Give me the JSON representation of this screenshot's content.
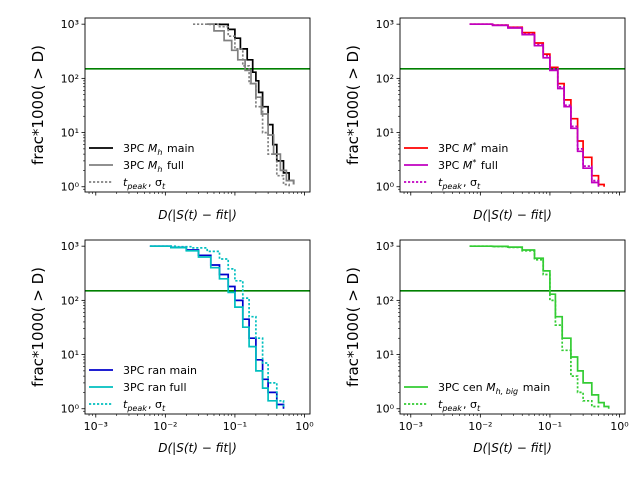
{
  "figure": {
    "title": "",
    "panel_count": 4
  },
  "chart_data": [
    {
      "type": "line",
      "xscale": "log",
      "yscale": "log",
      "xlim": [
        0.0007,
        1.2
      ],
      "ylim": [
        0.8,
        1300
      ],
      "xlabel": "D(|S(t) − fit|)",
      "ylabel": "frac*1000( > D)",
      "x_ticks": [
        "10⁻³",
        "10⁻²",
        "10⁻¹",
        "10⁰"
      ],
      "y_ticks": [
        "10⁰",
        "10¹",
        "10²",
        "10³"
      ],
      "show_xtick_labels": false,
      "hline": {
        "y": 150,
        "color": "#008000"
      },
      "legend_position": "lower-left",
      "series": [
        {
          "name": "3PC M_h main",
          "legend_main": "3PC ",
          "legend_sym": "M",
          "legend_sub": "h",
          "legend_rest": " main",
          "color": "#000000",
          "dash": "solid",
          "x": [
            0.04,
            0.06,
            0.08,
            0.1,
            0.12,
            0.15,
            0.18,
            0.2,
            0.22,
            0.25,
            0.3,
            0.35,
            0.4,
            0.5,
            0.6,
            0.7
          ],
          "y": [
            1000,
            990,
            800,
            550,
            350,
            220,
            130,
            90,
            55,
            30,
            14,
            6,
            3,
            1.8,
            1.3,
            1.1
          ]
        },
        {
          "name": "3PC M_h full",
          "legend_main": "3PC ",
          "legend_sym": "M",
          "legend_sub": "h",
          "legend_rest": " full",
          "color": "#808080",
          "dash": "solid",
          "x": [
            0.04,
            0.05,
            0.07,
            0.09,
            0.11,
            0.14,
            0.17,
            0.2,
            0.24,
            0.3,
            0.36,
            0.45,
            0.55,
            0.7
          ],
          "y": [
            1000,
            750,
            500,
            330,
            220,
            140,
            80,
            45,
            22,
            9,
            4,
            2,
            1.3,
            1.1
          ]
        },
        {
          "name": "t_peak, sigma_t",
          "legend_main": "",
          "legend_sym": "t",
          "legend_sub": "peak",
          "legend_rest": ", σ",
          "legend_sub2": "t",
          "color": "#808080",
          "dash": "dotted",
          "x": [
            0.025,
            0.04,
            0.06,
            0.08,
            0.1,
            0.13,
            0.16,
            0.2,
            0.25,
            0.3,
            0.4,
            0.5,
            0.6
          ],
          "y": [
            1000,
            990,
            900,
            600,
            350,
            170,
            80,
            30,
            10,
            4,
            1.6,
            1.1,
            1.0
          ]
        }
      ]
    },
    {
      "type": "line",
      "xscale": "log",
      "yscale": "log",
      "xlim": [
        0.0007,
        1.2
      ],
      "ylim": [
        0.8,
        1300
      ],
      "xlabel": "D(|S(t) − fit|)",
      "ylabel": "frac*1000( > D)",
      "x_ticks": [
        "10⁻³",
        "10⁻²",
        "10⁻¹",
        "10⁰"
      ],
      "y_ticks": [
        "10⁰",
        "10¹",
        "10²",
        "10³"
      ],
      "show_xtick_labels": false,
      "hline": {
        "y": 150,
        "color": "#008000"
      },
      "legend_position": "lower-left",
      "series": [
        {
          "name": "3PC M* main",
          "legend_main": "3PC ",
          "legend_sym": "M",
          "legend_sup": "*",
          "legend_rest": " main",
          "color": "#ff0000",
          "dash": "solid",
          "x": [
            0.007,
            0.015,
            0.025,
            0.04,
            0.06,
            0.08,
            0.1,
            0.13,
            0.16,
            0.2,
            0.25,
            0.3,
            0.4,
            0.5,
            0.6
          ],
          "y": [
            1000,
            960,
            880,
            700,
            450,
            280,
            160,
            80,
            40,
            18,
            7,
            3.5,
            1.6,
            1.1,
            1.0
          ]
        },
        {
          "name": "3PC M* full",
          "legend_main": "3PC ",
          "legend_sym": "M",
          "legend_sup": "*",
          "legend_rest": " full",
          "color": "#c000c0",
          "dash": "solid",
          "x": [
            0.007,
            0.015,
            0.025,
            0.04,
            0.06,
            0.08,
            0.1,
            0.13,
            0.16,
            0.2,
            0.25,
            0.3,
            0.4,
            0.5
          ],
          "y": [
            1000,
            950,
            850,
            640,
            400,
            240,
            140,
            65,
            30,
            12,
            4.5,
            2.2,
            1.2,
            1.0
          ]
        },
        {
          "name": "t_peak, sigma_t",
          "legend_main": "",
          "legend_sym": "t",
          "legend_sub": "peak",
          "legend_rest": ", σ",
          "legend_sub2": "t",
          "color": "#c000c0",
          "dash": "dotted",
          "x": [
            0.007,
            0.015,
            0.025,
            0.04,
            0.06,
            0.08,
            0.1,
            0.13,
            0.16,
            0.2,
            0.25,
            0.3,
            0.4,
            0.5
          ],
          "y": [
            1000,
            960,
            870,
            660,
            420,
            260,
            150,
            70,
            32,
            13,
            5,
            2.4,
            1.3,
            1.0
          ]
        }
      ]
    },
    {
      "type": "line",
      "xscale": "log",
      "yscale": "log",
      "xlim": [
        0.0007,
        1.2
      ],
      "ylim": [
        0.8,
        1300
      ],
      "xlabel": "D(|S(t) − fit|)",
      "ylabel": "frac*1000( > D)",
      "x_ticks": [
        "10⁻³",
        "10⁻²",
        "10⁻¹",
        "10⁰"
      ],
      "y_ticks": [
        "10⁰",
        "10¹",
        "10²",
        "10³"
      ],
      "show_xtick_labels": true,
      "hline": {
        "y": 150,
        "color": "#008000"
      },
      "legend_position": "lower-left",
      "series": [
        {
          "name": "3PC ran main",
          "legend_main": "3PC ran main",
          "color": "#0000cc",
          "dash": "solid",
          "x": [
            0.006,
            0.012,
            0.02,
            0.03,
            0.045,
            0.06,
            0.08,
            0.1,
            0.13,
            0.16,
            0.2,
            0.25,
            0.3,
            0.4,
            0.5
          ],
          "y": [
            1000,
            950,
            850,
            680,
            450,
            300,
            180,
            100,
            45,
            20,
            8,
            3.5,
            2,
            1.2,
            1.0
          ]
        },
        {
          "name": "3PC ran full",
          "legend_main": "3PC ran full",
          "color": "#00bfbf",
          "dash": "solid",
          "x": [
            0.006,
            0.012,
            0.02,
            0.03,
            0.045,
            0.06,
            0.08,
            0.1,
            0.13,
            0.16,
            0.2,
            0.25,
            0.3,
            0.4
          ],
          "y": [
            1000,
            940,
            820,
            630,
            400,
            250,
            140,
            75,
            32,
            14,
            5,
            2.4,
            1.4,
            1.0
          ]
        },
        {
          "name": "t_peak, sigma_t",
          "legend_main": "",
          "legend_sym": "t",
          "legend_sub": "peak",
          "legend_rest": ", σ",
          "legend_sub2": "t",
          "color": "#00bfbf",
          "dash": "dotted",
          "x": [
            0.006,
            0.015,
            0.025,
            0.04,
            0.06,
            0.08,
            0.1,
            0.13,
            0.16,
            0.2,
            0.25,
            0.3,
            0.4,
            0.5
          ],
          "y": [
            1000,
            980,
            930,
            800,
            580,
            380,
            230,
            110,
            50,
            20,
            7,
            3,
            1.4,
            1.0
          ]
        }
      ]
    },
    {
      "type": "line",
      "xscale": "log",
      "yscale": "log",
      "xlim": [
        0.0007,
        1.2
      ],
      "ylim": [
        0.8,
        1300
      ],
      "xlabel": "D(|S(t) − fit|)",
      "ylabel": "frac*1000( > D)",
      "x_ticks": [
        "10⁻³",
        "10⁻²",
        "10⁻¹",
        "10⁰"
      ],
      "y_ticks": [
        "10⁰",
        "10¹",
        "10²",
        "10³"
      ],
      "show_xtick_labels": true,
      "hline": {
        "y": 150,
        "color": "#008000"
      },
      "legend_position": "lower-left",
      "series": [
        {
          "name": "3PC cen M_h,big main",
          "legend_main": "3PC cen ",
          "legend_sym": "M",
          "legend_sub": "h, big",
          "legend_rest": " main",
          "color": "#33cc33",
          "dash": "solid",
          "x": [
            0.007,
            0.015,
            0.025,
            0.04,
            0.06,
            0.08,
            0.1,
            0.12,
            0.15,
            0.2,
            0.25,
            0.3,
            0.4,
            0.5,
            0.6,
            0.7
          ],
          "y": [
            1000,
            990,
            960,
            850,
            600,
            350,
            130,
            50,
            20,
            9,
            5,
            3,
            1.8,
            1.3,
            1.1,
            1.0
          ]
        },
        {
          "name": "t_peak, sigma_t",
          "legend_main": "",
          "legend_sym": "t",
          "legend_sub": "peak",
          "legend_rest": ", σ",
          "legend_sub2": "t",
          "color": "#33cc33",
          "dash": "dotted",
          "x": [
            0.007,
            0.015,
            0.025,
            0.04,
            0.06,
            0.08,
            0.1,
            0.12,
            0.15,
            0.2,
            0.25,
            0.3,
            0.4,
            0.5
          ],
          "y": [
            1000,
            985,
            950,
            820,
            560,
            300,
            100,
            35,
            12,
            4,
            2,
            1.4,
            1.1,
            1.0
          ]
        }
      ]
    }
  ]
}
